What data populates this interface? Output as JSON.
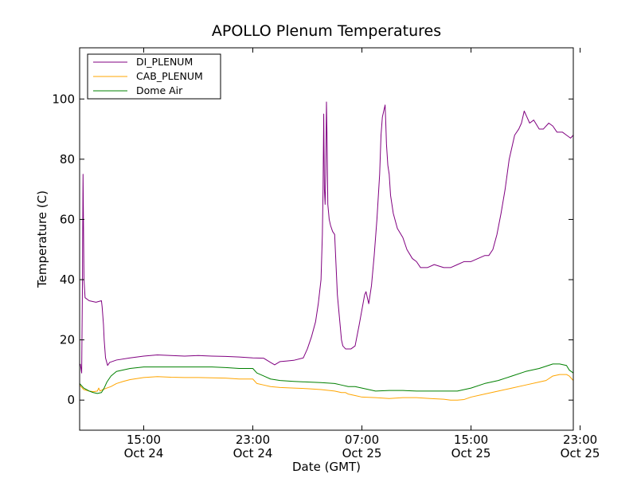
{
  "chart_data": {
    "type": "line",
    "title": "APOLLO Plenum Temperatures",
    "xlabel": "Date (GMT)",
    "ylabel": "Temperature (C)",
    "xunit": "hours since Oct 24 00:00 GMT",
    "xlim": [
      10.3,
      46.5
    ],
    "ylim": [
      -10,
      117
    ],
    "yticks": [
      0,
      20,
      40,
      60,
      80,
      100
    ],
    "xticks": [
      {
        "x": 15,
        "line1": "15:00",
        "line2": "Oct 24"
      },
      {
        "x": 23,
        "line1": "23:00",
        "line2": "Oct 24"
      },
      {
        "x": 31,
        "line1": "07:00",
        "line2": "Oct 25"
      },
      {
        "x": 39,
        "line1": "15:00",
        "line2": "Oct 25"
      },
      {
        "x": 47,
        "line1": "23:00",
        "line2": "Oct 25"
      }
    ],
    "legend_position": "top-left",
    "series": [
      {
        "name": "DI_PLENUM",
        "color": "#800080",
        "points": [
          [
            10.35,
            12
          ],
          [
            10.45,
            9
          ],
          [
            10.5,
            35
          ],
          [
            10.55,
            75
          ],
          [
            10.62,
            40
          ],
          [
            10.7,
            34
          ],
          [
            11.0,
            33
          ],
          [
            11.5,
            32.5
          ],
          [
            11.9,
            33
          ],
          [
            11.95,
            31
          ],
          [
            12.0,
            28
          ],
          [
            12.05,
            25
          ],
          [
            12.1,
            20
          ],
          [
            12.2,
            14
          ],
          [
            12.35,
            11.5
          ],
          [
            12.5,
            12.5
          ],
          [
            13.0,
            13.3
          ],
          [
            14.0,
            14
          ],
          [
            15.0,
            14.6
          ],
          [
            16.0,
            15
          ],
          [
            17.0,
            14.8
          ],
          [
            18.0,
            14.6
          ],
          [
            19.0,
            14.8
          ],
          [
            20.0,
            14.6
          ],
          [
            21.0,
            14.5
          ],
          [
            22.0,
            14.3
          ],
          [
            23.0,
            14.0
          ],
          [
            23.8,
            13.9
          ],
          [
            24.3,
            12.5
          ],
          [
            24.6,
            11.7
          ],
          [
            25.0,
            12.8
          ],
          [
            25.5,
            13
          ],
          [
            26.0,
            13.2
          ],
          [
            26.7,
            14
          ],
          [
            27.0,
            17
          ],
          [
            27.3,
            21
          ],
          [
            27.6,
            26
          ],
          [
            27.8,
            32
          ],
          [
            28.0,
            40
          ],
          [
            28.1,
            55
          ],
          [
            28.15,
            70
          ],
          [
            28.2,
            95
          ],
          [
            28.25,
            70
          ],
          [
            28.3,
            65
          ],
          [
            28.35,
            75
          ],
          [
            28.4,
            99
          ],
          [
            28.45,
            85
          ],
          [
            28.5,
            65
          ],
          [
            28.6,
            60
          ],
          [
            28.7,
            58
          ],
          [
            28.85,
            56
          ],
          [
            29.0,
            55
          ],
          [
            29.1,
            45
          ],
          [
            29.2,
            35
          ],
          [
            29.3,
            30
          ],
          [
            29.4,
            25
          ],
          [
            29.5,
            20
          ],
          [
            29.6,
            18
          ],
          [
            29.8,
            17
          ],
          [
            30.2,
            17
          ],
          [
            30.5,
            18
          ],
          [
            30.8,
            25
          ],
          [
            31.0,
            30
          ],
          [
            31.2,
            35
          ],
          [
            31.3,
            36
          ],
          [
            31.5,
            32
          ],
          [
            31.7,
            38
          ],
          [
            31.9,
            48
          ],
          [
            32.1,
            60
          ],
          [
            32.3,
            75
          ],
          [
            32.4,
            88
          ],
          [
            32.5,
            94
          ],
          [
            32.6,
            96
          ],
          [
            32.7,
            98
          ],
          [
            32.75,
            92
          ],
          [
            32.8,
            85
          ],
          [
            32.9,
            78
          ],
          [
            33.0,
            75
          ],
          [
            33.1,
            68
          ],
          [
            33.3,
            62
          ],
          [
            33.6,
            57
          ],
          [
            34.0,
            54
          ],
          [
            34.3,
            50
          ],
          [
            34.7,
            47
          ],
          [
            35.0,
            46
          ],
          [
            35.3,
            44
          ],
          [
            35.8,
            44
          ],
          [
            36.3,
            45
          ],
          [
            37.0,
            44
          ],
          [
            37.5,
            44
          ],
          [
            38.0,
            45
          ],
          [
            38.5,
            46
          ],
          [
            39.0,
            46
          ],
          [
            39.5,
            47
          ],
          [
            40.0,
            48
          ],
          [
            40.3,
            48
          ],
          [
            40.6,
            50
          ],
          [
            40.9,
            55
          ],
          [
            41.2,
            62
          ],
          [
            41.5,
            70
          ],
          [
            41.8,
            80
          ],
          [
            42.0,
            84
          ],
          [
            42.2,
            88
          ],
          [
            42.5,
            90
          ],
          [
            42.7,
            92
          ],
          [
            42.9,
            96
          ],
          [
            43.1,
            94
          ],
          [
            43.3,
            92
          ],
          [
            43.6,
            93
          ],
          [
            44.0,
            90
          ],
          [
            44.3,
            90
          ],
          [
            44.7,
            92
          ],
          [
            45.0,
            91
          ],
          [
            45.3,
            89
          ],
          [
            45.7,
            89
          ],
          [
            46.0,
            88
          ],
          [
            46.3,
            87
          ],
          [
            46.5,
            88
          ]
        ]
      },
      {
        "name": "CAB_PLENUM",
        "color": "#ffa500",
        "points": [
          [
            10.3,
            5
          ],
          [
            10.6,
            3.5
          ],
          [
            11.0,
            3
          ],
          [
            11.3,
            2.8
          ],
          [
            11.6,
            3
          ],
          [
            11.7,
            4
          ],
          [
            11.8,
            3
          ],
          [
            12.0,
            3.5
          ],
          [
            12.3,
            4
          ],
          [
            12.6,
            4.5
          ],
          [
            13.0,
            5.5
          ],
          [
            13.5,
            6.2
          ],
          [
            14.0,
            6.8
          ],
          [
            15.0,
            7.5
          ],
          [
            16.0,
            7.8
          ],
          [
            17.0,
            7.6
          ],
          [
            18.0,
            7.5
          ],
          [
            19.0,
            7.5
          ],
          [
            20.0,
            7.4
          ],
          [
            21.0,
            7.3
          ],
          [
            22.0,
            7.0
          ],
          [
            23.0,
            7.0
          ],
          [
            23.3,
            5.5
          ],
          [
            23.8,
            5
          ],
          [
            24.3,
            4.5
          ],
          [
            25.0,
            4.2
          ],
          [
            26.0,
            4
          ],
          [
            27.0,
            3.8
          ],
          [
            28.0,
            3.5
          ],
          [
            29.0,
            3.0
          ],
          [
            29.5,
            2.5
          ],
          [
            29.8,
            2.5
          ],
          [
            30.0,
            2.0
          ],
          [
            30.5,
            1.5
          ],
          [
            31.0,
            1.0
          ],
          [
            32.0,
            0.8
          ],
          [
            33.0,
            0.5
          ],
          [
            34.0,
            0.8
          ],
          [
            35.0,
            0.8
          ],
          [
            36.0,
            0.5
          ],
          [
            37.0,
            0.3
          ],
          [
            37.5,
            0
          ],
          [
            38.0,
            0
          ],
          [
            38.5,
            0.2
          ],
          [
            39.0,
            1
          ],
          [
            40.0,
            2
          ],
          [
            41.0,
            3
          ],
          [
            42.0,
            4
          ],
          [
            43.0,
            5
          ],
          [
            44.0,
            6
          ],
          [
            44.5,
            6.5
          ],
          [
            45.0,
            8
          ],
          [
            45.5,
            8.5
          ],
          [
            46.0,
            8.5
          ],
          [
            46.2,
            8
          ],
          [
            46.5,
            6.5
          ]
        ]
      },
      {
        "name": "Dome Air",
        "color": "#008000",
        "points": [
          [
            10.3,
            5.5
          ],
          [
            10.6,
            4
          ],
          [
            11.0,
            3
          ],
          [
            11.3,
            2.5
          ],
          [
            11.6,
            2.2
          ],
          [
            11.9,
            2.5
          ],
          [
            12.1,
            4
          ],
          [
            12.3,
            6
          ],
          [
            12.6,
            8
          ],
          [
            13.0,
            9.5
          ],
          [
            14.0,
            10.5
          ],
          [
            15.0,
            11.0
          ],
          [
            16.0,
            11.0
          ],
          [
            17.0,
            11.0
          ],
          [
            18.0,
            11.0
          ],
          [
            19.0,
            11.0
          ],
          [
            20.0,
            11.0
          ],
          [
            21.0,
            10.8
          ],
          [
            22.0,
            10.5
          ],
          [
            23.0,
            10.5
          ],
          [
            23.3,
            9
          ],
          [
            23.8,
            8
          ],
          [
            24.3,
            7
          ],
          [
            25.0,
            6.5
          ],
          [
            26.0,
            6.2
          ],
          [
            27.0,
            6.0
          ],
          [
            28.0,
            5.8
          ],
          [
            29.0,
            5.5
          ],
          [
            29.5,
            5
          ],
          [
            30.0,
            4.5
          ],
          [
            30.5,
            4.5
          ],
          [
            31.0,
            4
          ],
          [
            32.0,
            3
          ],
          [
            33.0,
            3.2
          ],
          [
            34.0,
            3.2
          ],
          [
            35.0,
            3
          ],
          [
            36.0,
            3
          ],
          [
            37.0,
            3
          ],
          [
            38.0,
            3
          ],
          [
            39.0,
            4
          ],
          [
            40.0,
            5.5
          ],
          [
            41.0,
            6.5
          ],
          [
            42.0,
            8
          ],
          [
            43.0,
            9.5
          ],
          [
            44.0,
            10.5
          ],
          [
            45.0,
            12
          ],
          [
            45.5,
            12
          ],
          [
            46.0,
            11.5
          ],
          [
            46.2,
            10
          ],
          [
            46.5,
            9
          ]
        ]
      }
    ]
  }
}
